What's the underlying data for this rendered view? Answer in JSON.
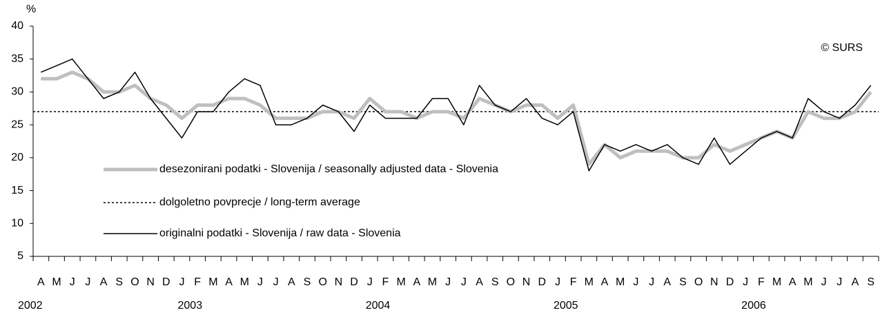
{
  "chart_data": {
    "type": "line",
    "y_unit": "%",
    "watermark": "© SURS",
    "categories": [
      "A",
      "M",
      "J",
      "J",
      "A",
      "S",
      "O",
      "N",
      "D",
      "J",
      "F",
      "M",
      "A",
      "M",
      "J",
      "J",
      "A",
      "S",
      "O",
      "N",
      "D",
      "J",
      "F",
      "M",
      "A",
      "M",
      "J",
      "J",
      "A",
      "S",
      "O",
      "N",
      "D",
      "J",
      "F",
      "M",
      "A",
      "M",
      "J",
      "J",
      "A",
      "S",
      "O",
      "N",
      "D",
      "J",
      "F",
      "M",
      "A",
      "M",
      "J",
      "J",
      "A",
      "S"
    ],
    "year_labels": [
      "2002",
      null,
      null,
      null,
      null,
      null,
      null,
      null,
      null,
      "2003",
      null,
      null,
      null,
      null,
      null,
      null,
      null,
      null,
      null,
      null,
      null,
      "2004",
      null,
      null,
      null,
      null,
      null,
      null,
      null,
      null,
      null,
      null,
      null,
      "2005",
      null,
      null,
      null,
      null,
      null,
      null,
      null,
      null,
      null,
      null,
      null,
      "2006",
      null,
      null,
      null,
      null,
      null,
      null,
      null,
      null
    ],
    "series": [
      {
        "name": "desezonirani podatki - Slovenija / seasonally adjusted data - Slovenia",
        "color": "#bfbfbf",
        "width": 5,
        "values": [
          32,
          32,
          33,
          32,
          30,
          30,
          31,
          29,
          28,
          26,
          28,
          28,
          29,
          29,
          28,
          26,
          26,
          26,
          27,
          27,
          26,
          29,
          27,
          27,
          26,
          27,
          27,
          26,
          29,
          28,
          27,
          28,
          28,
          26,
          28,
          19,
          22,
          20,
          21,
          21,
          21,
          20,
          20,
          22,
          21,
          22,
          23,
          24,
          23,
          27,
          26,
          26,
          27,
          30
        ]
      },
      {
        "name": "originalni podatki - Slovenija / raw data - Slovenia",
        "color": "#000000",
        "width": 1.5,
        "values": [
          33,
          34,
          35,
          32,
          29,
          30,
          33,
          29,
          26,
          23,
          27,
          27,
          30,
          32,
          31,
          25,
          25,
          26,
          28,
          27,
          24,
          28,
          26,
          26,
          26,
          29,
          29,
          25,
          31,
          28,
          27,
          29,
          26,
          25,
          27,
          18,
          22,
          21,
          22,
          21,
          22,
          20,
          19,
          23,
          19,
          21,
          23,
          24,
          23,
          29,
          27,
          26,
          28,
          31
        ]
      }
    ],
    "reference_line": {
      "name": "dolgoletno povprecje / long-term average",
      "value": 27,
      "color": "#000000"
    },
    "ylim": [
      5,
      40
    ],
    "yticks": [
      5,
      10,
      15,
      20,
      25,
      30,
      35,
      40
    ]
  }
}
